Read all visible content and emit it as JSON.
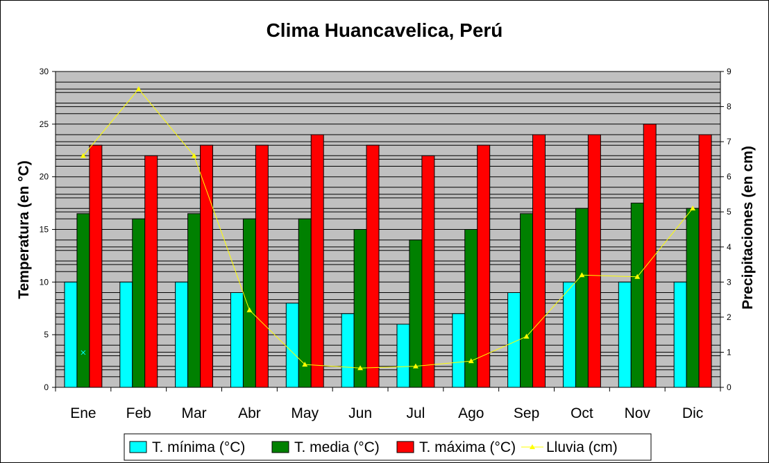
{
  "chart_data": {
    "type": "bar",
    "title": "Clima Huancavelica, Perú",
    "ylabel": "Temperatura (en °C)",
    "y2label": "Precipitaciones (en cm)",
    "xlabel": "",
    "categories": [
      "Ene",
      "Feb",
      "Mar",
      "Abr",
      "May",
      "Jun",
      "Jul",
      "Ago",
      "Sep",
      "Oct",
      "Nov",
      "Dic"
    ],
    "ylim": [
      0,
      30
    ],
    "yticks": [
      0,
      5,
      10,
      15,
      20,
      25,
      30
    ],
    "y2lim": [
      0,
      9
    ],
    "y2ticks": [
      0,
      1,
      2,
      3,
      4,
      5,
      6,
      7,
      8,
      9
    ],
    "grid": true,
    "legend_position": "bottom",
    "series": [
      {
        "name": "T. mínima (°C)",
        "type": "bar",
        "axis": "left",
        "color": "#00ffff",
        "values": [
          10,
          10,
          10,
          9,
          8,
          7,
          6,
          7,
          9,
          10,
          10,
          10
        ]
      },
      {
        "name": "T. media (°C)",
        "type": "bar",
        "axis": "left",
        "color": "#008000",
        "values": [
          16.5,
          16,
          16.5,
          16,
          16,
          15,
          14,
          15,
          16.5,
          17,
          17.5,
          17
        ]
      },
      {
        "name": "T. máxima (°C)",
        "type": "bar",
        "axis": "left",
        "color": "#ff0000",
        "values": [
          23,
          22,
          23,
          23,
          24,
          23,
          22,
          23,
          24,
          24,
          25,
          24
        ]
      },
      {
        "name": "Lluvia (cm)",
        "type": "line",
        "axis": "right",
        "color": "#ffff00",
        "values": [
          6.6,
          8.5,
          6.6,
          2.2,
          0.65,
          0.55,
          0.6,
          0.75,
          1.45,
          3.2,
          3.15,
          5.1
        ]
      }
    ],
    "stray_marker": {
      "category": "Ene",
      "value": 3.3,
      "axis": "left",
      "color": "#00ffff"
    }
  }
}
